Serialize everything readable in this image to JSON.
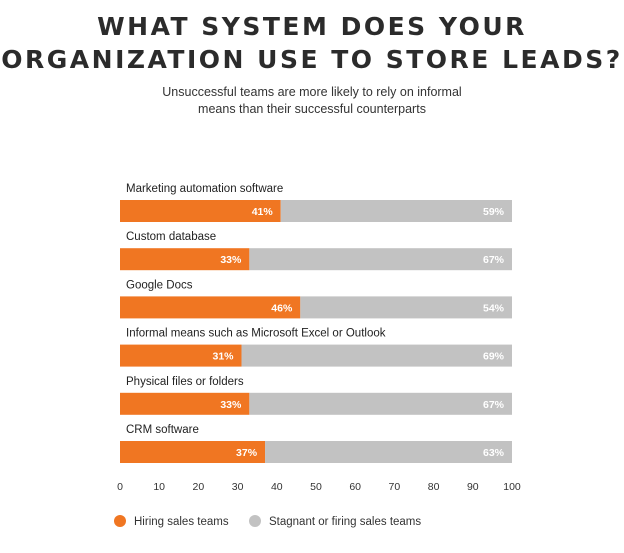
{
  "header": {
    "title_line1": "WHAT SYSTEM DOES YOUR",
    "title_line2": "ORGANIZATION USE TO STORE LEADS?",
    "subtitle_line1": "Unsuccessful teams are more likely to rely on informal",
    "subtitle_line2": "means than their successful counterparts"
  },
  "colors": {
    "hiring": "#f07622",
    "stagnant": "#c2c2c2"
  },
  "chart_data": {
    "type": "bar",
    "stacked": true,
    "orientation": "horizontal",
    "title": "WHAT SYSTEM DOES YOUR ORGANIZATION USE TO STORE LEADS?",
    "subtitle": "Unsuccessful teams are more likely to rely on informal means than their successful counterparts",
    "categories": [
      "Marketing automation software",
      "Custom database",
      "Google Docs",
      "Informal means such as Microsoft Excel or Outlook",
      "Physical files or folders",
      "CRM software"
    ],
    "series": [
      {
        "name": "Hiring sales teams",
        "values": [
          41,
          33,
          46,
          31,
          33,
          37
        ],
        "labels": [
          "41%",
          "33%",
          "46%",
          "31%",
          "33%",
          "37%"
        ]
      },
      {
        "name": "Stagnant or firing sales teams",
        "values": [
          59,
          67,
          54,
          69,
          67,
          63
        ],
        "labels": [
          "59%",
          "67%",
          "54%",
          "69%",
          "67%",
          "63%"
        ]
      }
    ],
    "xlim": [
      0,
      100
    ],
    "xticks": [
      0,
      10,
      20,
      30,
      40,
      50,
      60,
      70,
      80,
      90,
      100
    ],
    "grid": false,
    "legend_position": "bottom-left"
  }
}
